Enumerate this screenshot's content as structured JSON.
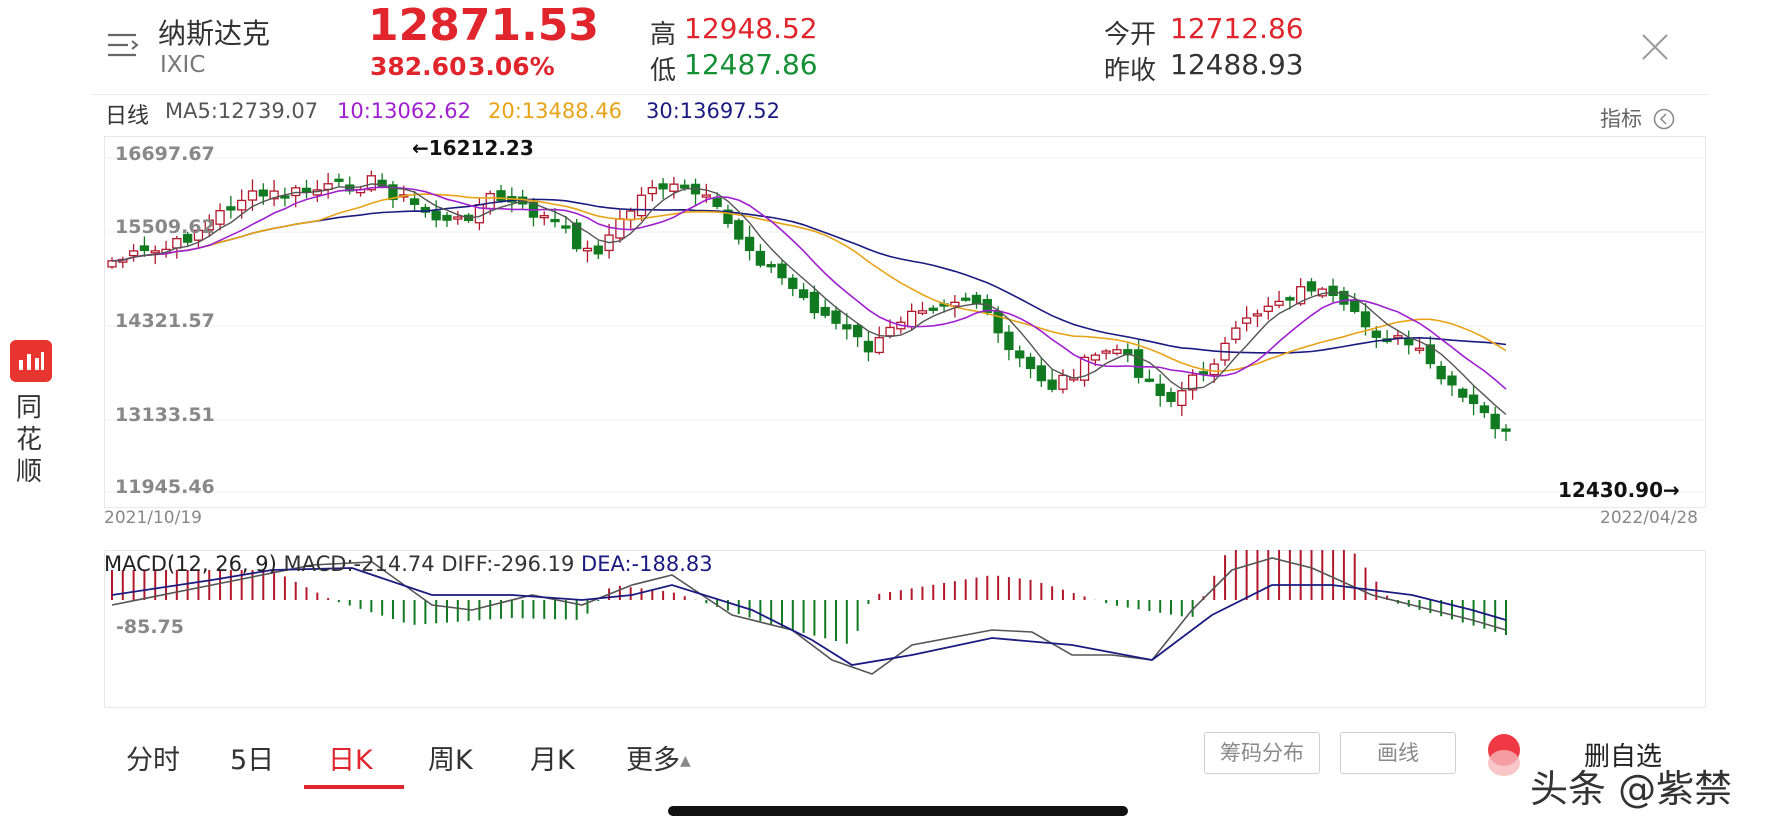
{
  "header": {
    "name": "纳斯达克",
    "code": "IXIC",
    "price": "12871.53",
    "change": "382.60",
    "change_pct": "3.06%",
    "high_label": "高",
    "high": "12948.52",
    "low_label": "低",
    "low": "12487.86",
    "open_label": "今开",
    "open": "12712.86",
    "prev_close_label": "昨收",
    "prev_close": "12488.93"
  },
  "ma_bar": {
    "period": "日线",
    "ma5": "MA5:12739.07",
    "ma10": "10:13062.62",
    "ma20": "20:13488.46",
    "ma30": "30:13697.52",
    "indicator": "指标",
    "colors": {
      "ma5": "#555555",
      "ma10": "#a020d0",
      "ma20": "#e8a317",
      "ma30": "#1a1a80",
      "up": "#b2182b",
      "down": "#117a20"
    }
  },
  "kchart": {
    "y_labels": [
      "16697.67",
      "15509.62",
      "14321.57",
      "13133.51",
      "11945.46"
    ],
    "max_note": "←16212.23",
    "min_note": "12430.90→",
    "start_date": "2021/10/19",
    "end_date": "2022/04/28"
  },
  "macd": {
    "title": "MACD(12, 26, 9)",
    "macd_value": "MACD:-214.74",
    "diff_value": "DIFF:-296.19",
    "dea_value": "DEA:-188.83",
    "level_label": "-85.75"
  },
  "sidebar": {
    "brand": "同花顺"
  },
  "tabs": [
    {
      "label": "分时",
      "active": false
    },
    {
      "label": "5日",
      "active": false
    },
    {
      "label": "日K",
      "active": true
    },
    {
      "label": "周K",
      "active": false
    },
    {
      "label": "月K",
      "active": false
    },
    {
      "label": "更多",
      "active": false
    }
  ],
  "bottom_buttons": {
    "chips": "筹码分布",
    "draw": "画线",
    "delete_watch": "删自选"
  },
  "watermark": "头条 @紫禁"
}
